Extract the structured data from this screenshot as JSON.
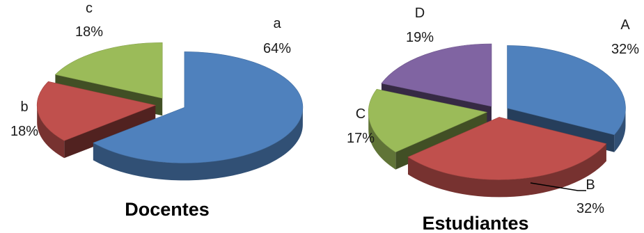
{
  "chart_data": [
    {
      "type": "pie",
      "title": "Docentes",
      "categories": [
        "a",
        "b",
        "c"
      ],
      "values": [
        64,
        18,
        18
      ],
      "value_labels": [
        "64%",
        "18%",
        "18%"
      ],
      "colors": [
        "#4f81bd",
        "#c0504d",
        "#9bbb59"
      ],
      "style": "3d-exploded"
    },
    {
      "type": "pie",
      "title": "Estudiantes",
      "categories": [
        "A",
        "B",
        "C",
        "D"
      ],
      "values": [
        32,
        32,
        17,
        19
      ],
      "value_labels": [
        "32%",
        "32%",
        "17%",
        "19%"
      ],
      "colors": [
        "#4f81bd",
        "#c0504d",
        "#9bbb59",
        "#8064a2"
      ],
      "style": "3d-exploded"
    }
  ]
}
